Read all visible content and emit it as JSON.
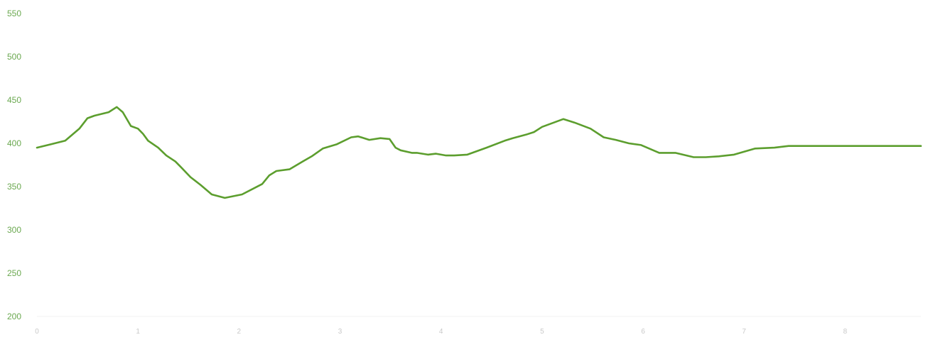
{
  "chart_data": {
    "type": "line",
    "title": "",
    "xlabel": "",
    "ylabel": "",
    "xlim": [
      0,
      8.75
    ],
    "ylim": [
      200,
      550
    ],
    "y_ticks": [
      200,
      250,
      300,
      350,
      400,
      450,
      500,
      550
    ],
    "x_ticks": [
      0,
      1,
      2,
      3,
      4,
      5,
      6,
      7,
      8
    ],
    "grid": false,
    "legend": "none",
    "colors": {
      "line": "#5c9e2e",
      "y_tick_text": "#6aa84f",
      "x_tick_text": "#c9c9c9"
    },
    "series": [
      {
        "x": [
          0,
          0.14,
          0.28,
          0.42,
          0.5,
          0.57,
          0.71,
          0.79,
          0.85,
          0.93,
          1.0,
          1.05,
          1.1,
          1.2,
          1.28,
          1.37,
          1.43,
          1.52,
          1.62,
          1.73,
          1.86,
          2.03,
          2.23,
          2.3,
          2.37,
          2.5,
          2.63,
          2.72,
          2.83,
          2.97,
          3.11,
          3.18,
          3.29,
          3.4,
          3.49,
          3.55,
          3.6,
          3.71,
          3.76,
          3.87,
          3.95,
          4.05,
          4.13,
          4.26,
          4.45,
          4.63,
          4.71,
          4.84,
          4.92,
          5.0,
          5.21,
          5.32,
          5.48,
          5.61,
          5.73,
          5.86,
          5.98,
          6.16,
          6.32,
          6.5,
          6.62,
          6.75,
          6.9,
          7.11,
          7.3,
          7.44,
          7.53,
          7.6,
          7.68,
          7.74,
          7.82,
          7.95,
          8.16,
          8.3,
          8.49,
          8.62,
          8.67,
          8.75
        ],
        "y": [
          395,
          399,
          403,
          417,
          429,
          432,
          436,
          442,
          436,
          420,
          417,
          411,
          403,
          395,
          386,
          379,
          372,
          361,
          352,
          341,
          337,
          341,
          353,
          363,
          368,
          370,
          379,
          385,
          394,
          399,
          407,
          408,
          404,
          406,
          405,
          395,
          392,
          389,
          389,
          387,
          388,
          386,
          386,
          387,
          395,
          403,
          406,
          410,
          413,
          419,
          428,
          424,
          417,
          407,
          404,
          400,
          398,
          389,
          389,
          384,
          384,
          385,
          387,
          394,
          395,
          397,
          397,
          397,
          397,
          397,
          397,
          397,
          397,
          397,
          397,
          397,
          397,
          397
        ]
      }
    ]
  }
}
